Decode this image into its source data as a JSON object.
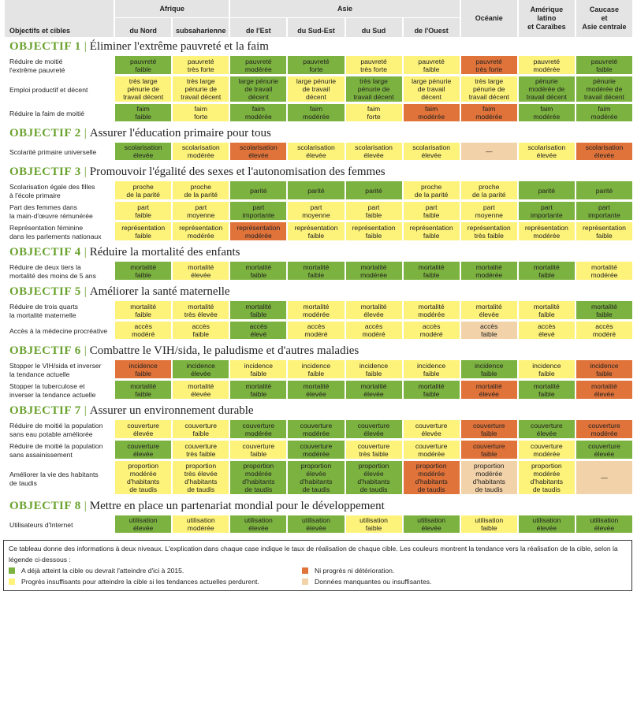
{
  "header": {
    "objectives_label": "Objectifs et cibles",
    "groups": [
      {
        "label": "Afrique",
        "span": 2
      },
      {
        "label": "Asie",
        "span": 4
      },
      {
        "label": "",
        "span": 1
      },
      {
        "label": "",
        "span": 1
      },
      {
        "label": "",
        "span": 1
      }
    ],
    "regions": [
      "du Nord",
      "subsaharienne",
      "de l'Est",
      "du Sud-Est",
      "du Sud",
      "de l'Ouest",
      "Océanie",
      "Amérique\nlatino\net Caraïbes",
      "Caucase\net\nAsie centrale"
    ]
  },
  "goals": [
    {
      "num": "OBJECTIF 1",
      "title": "Éliminer l'extrême pauvreté et la faim",
      "rows": [
        {
          "label": "Réduire de moitié\nl'extrême pauvreté",
          "cells": [
            {
              "t": "pauvreté\nfaible",
              "c": "G"
            },
            {
              "t": "pauvreté\ntrès forte",
              "c": "Y"
            },
            {
              "t": "pauvreté\nmodérée",
              "c": "G"
            },
            {
              "t": "pauvreté\nforte",
              "c": "G"
            },
            {
              "t": "pauvreté\ntrès forte",
              "c": "Y"
            },
            {
              "t": "pauvreté\nfaible",
              "c": "Y"
            },
            {
              "t": "pauvreté\ntrès forte",
              "c": "O"
            },
            {
              "t": "pauvreté\nmodérée",
              "c": "Y"
            },
            {
              "t": "pauvreté\nfaible",
              "c": "G"
            }
          ]
        },
        {
          "label": "Emploi productif et décent",
          "cells": [
            {
              "t": "très large\npénurie de\ntravail décent",
              "c": "Y"
            },
            {
              "t": "très large\npénurie de\ntravail décent",
              "c": "Y"
            },
            {
              "t": "large pénurie\nde travail\ndécent",
              "c": "G"
            },
            {
              "t": "large pénurie\nde travail\ndécent",
              "c": "Y"
            },
            {
              "t": "très large\npénurie de\ntravail décent",
              "c": "G"
            },
            {
              "t": "large pénurie\nde travail\ndécent",
              "c": "Y"
            },
            {
              "t": "très large\npénurie de\ntravail décent",
              "c": "Y"
            },
            {
              "t": "pénurie\nmodérée de\ntravail décent",
              "c": "G"
            },
            {
              "t": "pénurie\nmodérée de\ntravail décent",
              "c": "G"
            }
          ]
        },
        {
          "label": "Réduire la faim de moitié",
          "cells": [
            {
              "t": "faim\nfaible",
              "c": "G"
            },
            {
              "t": "faim\nforte",
              "c": "Y"
            },
            {
              "t": "faim\nmodérée",
              "c": "G"
            },
            {
              "t": "faim\nmodérée",
              "c": "G"
            },
            {
              "t": "faim\nforte",
              "c": "Y"
            },
            {
              "t": "faim\nmodérée",
              "c": "O"
            },
            {
              "t": "faim\nmodérée",
              "c": "O"
            },
            {
              "t": "faim\nmodérée",
              "c": "G"
            },
            {
              "t": "faim\nmodérée",
              "c": "G"
            }
          ]
        }
      ]
    },
    {
      "num": "OBJECTIF 2",
      "title": "Assurer l'éducation primaire pour tous",
      "rows": [
        {
          "label": "Scolarité primaire universelle",
          "cells": [
            {
              "t": "scolarisation\nélevée",
              "c": "G"
            },
            {
              "t": "scolarisation\nmodérée",
              "c": "Y"
            },
            {
              "t": "scolarisation\nélevée",
              "c": "O"
            },
            {
              "t": "scolarisation\nélevée",
              "c": "Y"
            },
            {
              "t": "scolarisation\nélevée",
              "c": "Y"
            },
            {
              "t": "scolarisation\nélevée",
              "c": "Y"
            },
            {
              "t": "—",
              "c": "B"
            },
            {
              "t": "scolarisation\nélevée",
              "c": "Y"
            },
            {
              "t": "scolarisation\nélevée",
              "c": "O"
            }
          ]
        }
      ]
    },
    {
      "num": "OBJECTIF 3",
      "title": "Promouvoir l'égalité des sexes et l'autonomisation des femmes",
      "rows": [
        {
          "label": "Scolarisation égale des filles\nà l'école primaire",
          "cells": [
            {
              "t": "proche\nde la parité",
              "c": "Y"
            },
            {
              "t": "proche\nde la parité",
              "c": "Y"
            },
            {
              "t": "parité",
              "c": "G"
            },
            {
              "t": "parité",
              "c": "G"
            },
            {
              "t": "parité",
              "c": "G"
            },
            {
              "t": "proche\nde la parité",
              "c": "Y"
            },
            {
              "t": "proche\nde la parité",
              "c": "Y"
            },
            {
              "t": "parité",
              "c": "G"
            },
            {
              "t": "parité",
              "c": "G"
            }
          ]
        },
        {
          "label": "Part des femmes dans\nla main-d'œuvre rémunérée",
          "cells": [
            {
              "t": "part\nfaible",
              "c": "Y"
            },
            {
              "t": "part\nmoyenne",
              "c": "Y"
            },
            {
              "t": "part\nimportante",
              "c": "G"
            },
            {
              "t": "part\nmoyenne",
              "c": "Y"
            },
            {
              "t": "part\nfaible",
              "c": "Y"
            },
            {
              "t": "part\nfaible",
              "c": "Y"
            },
            {
              "t": "part\nmoyenne",
              "c": "Y"
            },
            {
              "t": "part\nimportante",
              "c": "G"
            },
            {
              "t": "part\nimportante",
              "c": "G"
            }
          ]
        },
        {
          "label": "Représentation féminine\ndans les parlements nationaux",
          "cells": [
            {
              "t": "représentation\nfaible",
              "c": "Y"
            },
            {
              "t": "représentation\nmodérée",
              "c": "Y"
            },
            {
              "t": "représentation\nmodérée",
              "c": "O"
            },
            {
              "t": "représentation\nfaible",
              "c": "Y"
            },
            {
              "t": "représentation\nfaible",
              "c": "Y"
            },
            {
              "t": "représentation\nfaible",
              "c": "Y"
            },
            {
              "t": "représentation\ntrès faible",
              "c": "Y"
            },
            {
              "t": "représentation\nmodérée",
              "c": "Y"
            },
            {
              "t": "représentation\nfaible",
              "c": "Y"
            }
          ]
        }
      ]
    },
    {
      "num": "OBJECTIF 4",
      "title": "Réduire la mortalité des enfants",
      "rows": [
        {
          "label": "Réduire de deux tiers la\nmortalité des moins de 5 ans",
          "cells": [
            {
              "t": "mortalité\nfaible",
              "c": "G"
            },
            {
              "t": "mortalité\nélevée",
              "c": "Y"
            },
            {
              "t": "mortalité\nfaible",
              "c": "G"
            },
            {
              "t": "mortalité\nfaible",
              "c": "G"
            },
            {
              "t": "mortalité\nmodérée",
              "c": "G"
            },
            {
              "t": "mortalité\nfaible",
              "c": "G"
            },
            {
              "t": "mortalité\nmodérée",
              "c": "G"
            },
            {
              "t": "mortalité\nfaible",
              "c": "G"
            },
            {
              "t": "mortalité\nmodérée",
              "c": "Y"
            }
          ]
        }
      ]
    },
    {
      "num": "OBJECTIF 5",
      "title": "Améliorer la santé maternelle",
      "rows": [
        {
          "label": "Réduire de trois quarts\nla mortalité maternelle",
          "cells": [
            {
              "t": "mortalité\nfaible",
              "c": "Y"
            },
            {
              "t": "mortalité\ntrès élevée",
              "c": "Y"
            },
            {
              "t": "mortalité\nfaible",
              "c": "G"
            },
            {
              "t": "mortalité\nmodérée",
              "c": "Y"
            },
            {
              "t": "mortalité\nélevée",
              "c": "Y"
            },
            {
              "t": "mortalité\nmodérée",
              "c": "Y"
            },
            {
              "t": "mortalité\nélevée",
              "c": "Y"
            },
            {
              "t": "mortalité\nfaible",
              "c": "Y"
            },
            {
              "t": "mortalité\nfaible",
              "c": "G"
            }
          ]
        },
        {
          "label": "Accès à la médecine procréative",
          "cells": [
            {
              "t": "accès\nmodéré",
              "c": "Y"
            },
            {
              "t": "accès\nfaible",
              "c": "Y"
            },
            {
              "t": "accès\nélevé",
              "c": "G"
            },
            {
              "t": "accès\nmodéré",
              "c": "Y"
            },
            {
              "t": "accès\nmodéré",
              "c": "Y"
            },
            {
              "t": "accès\nmodéré",
              "c": "Y"
            },
            {
              "t": "accès\nfaible",
              "c": "B"
            },
            {
              "t": "accès\nélevé",
              "c": "Y"
            },
            {
              "t": "accès\nmodéré",
              "c": "Y"
            }
          ]
        }
      ]
    },
    {
      "num": "OBJECTIF 6",
      "title": "Combattre le VIH/sida, le paludisme et d'autres maladies",
      "rows": [
        {
          "label": "Stopper le VIH/sida et inverser\nla tendance actuelle",
          "cells": [
            {
              "t": "incidence\nfaible",
              "c": "O"
            },
            {
              "t": "incidence\nélevée",
              "c": "G"
            },
            {
              "t": "incidence\nfaible",
              "c": "Y"
            },
            {
              "t": "incidence\nfaible",
              "c": "Y"
            },
            {
              "t": "incidence\nfaible",
              "c": "Y"
            },
            {
              "t": "incidence\nfaible",
              "c": "Y"
            },
            {
              "t": "incidence\nfaible",
              "c": "G"
            },
            {
              "t": "incidence\nfaible",
              "c": "Y"
            },
            {
              "t": "incidence\nfaible",
              "c": "O"
            }
          ]
        },
        {
          "label": "Stopper la tuberculose et\ninverser la tendance actuelle",
          "cells": [
            {
              "t": "mortalité\nfaible",
              "c": "G"
            },
            {
              "t": "mortalité\nélevée",
              "c": "Y"
            },
            {
              "t": "mortalité\nfaible",
              "c": "G"
            },
            {
              "t": "mortalité\nélevée",
              "c": "G"
            },
            {
              "t": "mortalité\nélevée",
              "c": "G"
            },
            {
              "t": "mortalité\nfaible",
              "c": "G"
            },
            {
              "t": "mortalité\nélevée",
              "c": "O"
            },
            {
              "t": "mortalité\nfaible",
              "c": "G"
            },
            {
              "t": "mortalité\nélevée",
              "c": "O"
            }
          ]
        }
      ]
    },
    {
      "num": "OBJECTIF 7",
      "title": "Assurer un environnement durable",
      "rows": [
        {
          "label": "Réduire de moitié la population\nsans eau potable améliorée",
          "cells": [
            {
              "t": "couverture\nélevée",
              "c": "Y"
            },
            {
              "t": "couverture\nfaible",
              "c": "Y"
            },
            {
              "t": "couverture\nmodérée",
              "c": "G"
            },
            {
              "t": "couverture\nmodérée",
              "c": "G"
            },
            {
              "t": "couverture\nélevée",
              "c": "G"
            },
            {
              "t": "couverture\nélevée",
              "c": "Y"
            },
            {
              "t": "couverture\nfaible",
              "c": "O"
            },
            {
              "t": "couverture\nélevée",
              "c": "G"
            },
            {
              "t": "couverture\nmodérée",
              "c": "O"
            }
          ]
        },
        {
          "label": "Réduire de moitié la population\nsans assainissement",
          "cells": [
            {
              "t": "couverture\nélevée",
              "c": "G"
            },
            {
              "t": "couverture\ntrès faible",
              "c": "Y"
            },
            {
              "t": "couverture\nfaible",
              "c": "Y"
            },
            {
              "t": "couverture\nmodérée",
              "c": "G"
            },
            {
              "t": "couverture\ntrès faible",
              "c": "Y"
            },
            {
              "t": "couverture\nmodérée",
              "c": "Y"
            },
            {
              "t": "couverture\nfaible",
              "c": "O"
            },
            {
              "t": "couverture\nmodérée",
              "c": "Y"
            },
            {
              "t": "couverture\nélevée",
              "c": "G"
            }
          ]
        },
        {
          "label": "Améliorer la vie des habitants\nde taudis",
          "cells": [
            {
              "t": "proportion\nmodérée\nd'habitants\nde taudis",
              "c": "Y"
            },
            {
              "t": "proportion\ntrès élevée\nd'habitants\nde taudis",
              "c": "Y"
            },
            {
              "t": "proportion\nmodérée\nd'habitants\nde taudis",
              "c": "G"
            },
            {
              "t": "proportion\nélevée\nd'habitants\nde taudis",
              "c": "G"
            },
            {
              "t": "proportion\nélevée\nd'habitants\nde taudis",
              "c": "G"
            },
            {
              "t": "proportion\nmodérée\nd'habitants\nde taudis",
              "c": "O"
            },
            {
              "t": "proportion\nmodérée\nd'habitants\nde taudis",
              "c": "B"
            },
            {
              "t": "proportion\nmodérée\nd'habitants\nde taudis",
              "c": "Y"
            },
            {
              "t": "—",
              "c": "B"
            }
          ]
        }
      ]
    },
    {
      "num": "OBJECTIF 8",
      "title": "Mettre en place un partenariat mondial pour le développement",
      "rows": [
        {
          "label": "Utilisateurs d'Internet",
          "cells": [
            {
              "t": "utilisation\nélevée",
              "c": "G"
            },
            {
              "t": "utilisation\nmodérée",
              "c": "Y"
            },
            {
              "t": "utilisation\nélevée",
              "c": "G"
            },
            {
              "t": "utilisation\nélevée",
              "c": "G"
            },
            {
              "t": "utilisation\nfaible",
              "c": "Y"
            },
            {
              "t": "utilisation\nélevée",
              "c": "G"
            },
            {
              "t": "utilisation\nfaible",
              "c": "Y"
            },
            {
              "t": "utilisation\nélevée",
              "c": "G"
            },
            {
              "t": "utilisation\nélevée",
              "c": "G"
            }
          ]
        }
      ]
    }
  ],
  "legend": {
    "intro": "Ce tableau donne des informations à deux niveaux. L'explication dans chaque case indique le taux de réalisation de chaque cible. Les couleurs montrent la tendance vers la réalisation de la cible, selon la légende ci-dessous :",
    "items": [
      {
        "text": "A déjà atteint la cible ou devrait l'atteindre d'ici à 2015.",
        "c": "G"
      },
      {
        "text": "Ni progrès ni détérioration.",
        "c": "O"
      },
      {
        "text": "Progrès insuffisants pour atteindre la cible si les tendances actuelles perdurent.",
        "c": "Y"
      },
      {
        "text": "Données manquantes ou insuffisantes.",
        "c": "B"
      }
    ]
  },
  "colors": {
    "G": "#7cb23f",
    "Y": "#fdf27a",
    "O": "#e0733a",
    "B": "#f2d2a8",
    "goal_accent": "#6aa22e"
  }
}
